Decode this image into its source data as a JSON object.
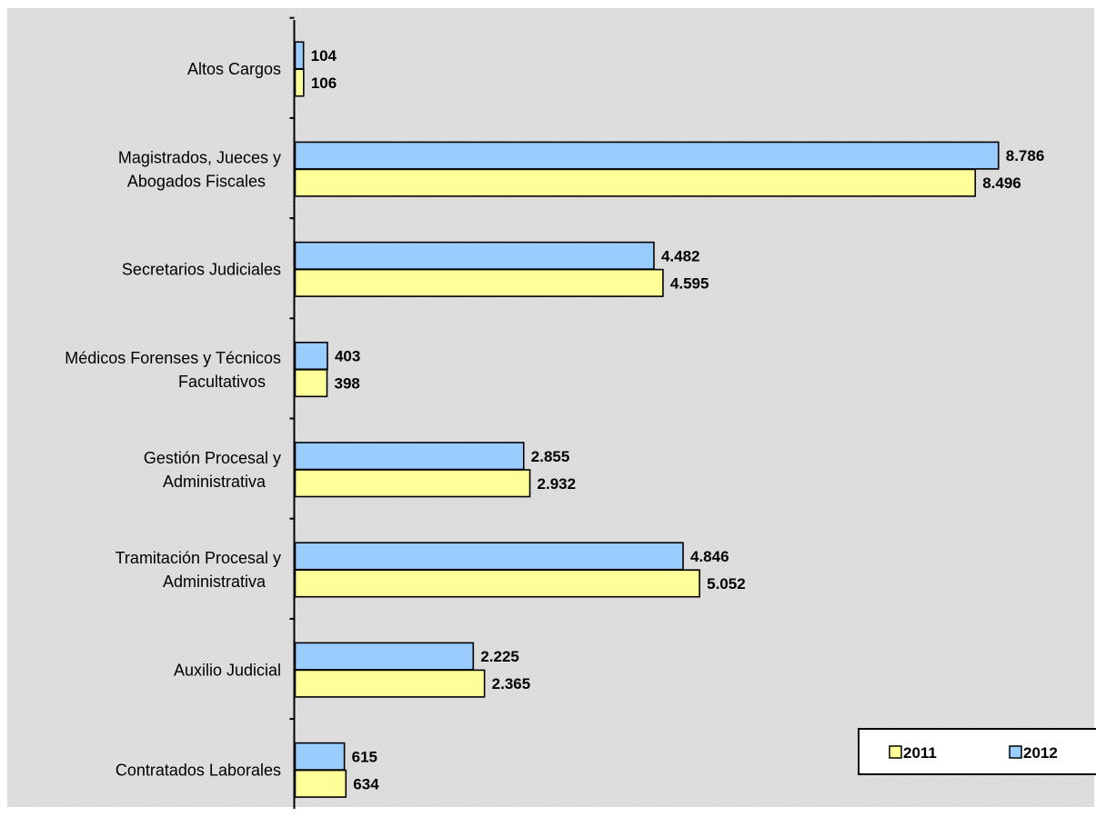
{
  "chart_data": {
    "type": "bar",
    "orientation": "horizontal",
    "categories": [
      "Altos Cargos",
      "Magistrados, Jueces y\nAbogados Fiscales",
      "Secretarios Judiciales",
      "Médicos Forenses y Técnicos\nFacultativos",
      "Gestión Procesal y\nAdministrativa",
      "Tramitación Procesal y\nAdministrativa",
      "Auxilio Judicial",
      "Contratados Laborales"
    ],
    "series": [
      {
        "name": "2012",
        "color": "#99CCFF",
        "values": [
          104,
          8786,
          4482,
          403,
          2855,
          4846,
          2225,
          615
        ],
        "labels": [
          "104",
          "8.786",
          "4.482",
          "403",
          "2.855",
          "4.846",
          "2.225",
          "615"
        ]
      },
      {
        "name": "2011",
        "color": "#FFFF99",
        "values": [
          106,
          8496,
          4595,
          398,
          2932,
          5052,
          2365,
          634
        ],
        "labels": [
          "106",
          "8.496",
          "4.595",
          "398",
          "2.932",
          "5.052",
          "2.365",
          "634"
        ]
      }
    ],
    "legend": {
      "position": "bottom-right",
      "entries": [
        {
          "name": "2011",
          "color": "#FFFF99"
        },
        {
          "name": "2012",
          "color": "#99CCFF"
        }
      ]
    },
    "xlim": [
      0,
      10000
    ],
    "grid": false,
    "plot_background": "#E0E0E0"
  }
}
